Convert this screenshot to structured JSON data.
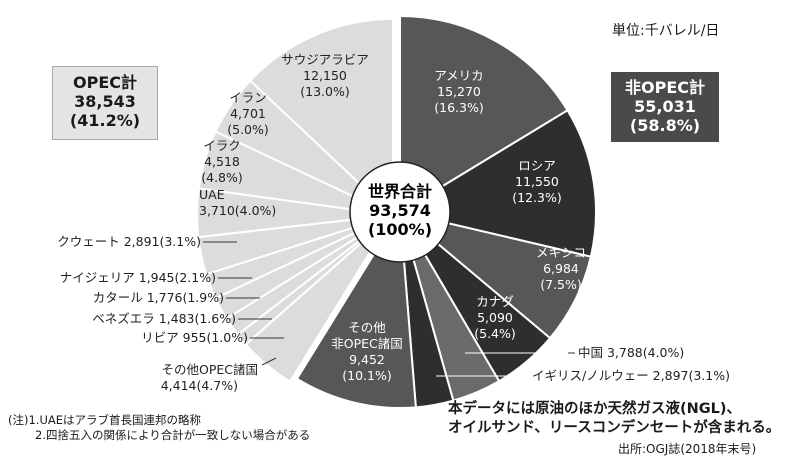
{
  "unit_label": "単位:千バレル/日",
  "opec_box": {
    "title": "OPEC計",
    "value": "38,543",
    "pct": "(41.2%)"
  },
  "nonopec_box": {
    "title": "非OPEC計",
    "value": "55,031",
    "pct": "(58.8%)"
  },
  "center": {
    "title": "世界合計",
    "value": "93,574",
    "pct": "(100%)"
  },
  "colors": {
    "opec": "#dcdcdc",
    "nonopec_dark": "#2e2e2e",
    "nonopec_mid": "#575757",
    "nonopec_light": "#6a6a6a",
    "separator": "#ffffff"
  },
  "chart_data": {
    "type": "pie",
    "total": 93574,
    "groups": [
      {
        "name": "非OPEC計",
        "value": 55031,
        "pct": 58.8
      },
      {
        "name": "OPEC計",
        "value": 38543,
        "pct": 41.2
      }
    ],
    "slices": [
      {
        "name": "アメリカ",
        "value": 15270,
        "value_label": "15,270",
        "pct_label": "(16.3%)",
        "group": "nonopec"
      },
      {
        "name": "ロシア",
        "value": 11550,
        "value_label": "11,550",
        "pct_label": "(12.3%)",
        "group": "nonopec"
      },
      {
        "name": "メキシコ",
        "value": 6984,
        "value_label": "6,984",
        "pct_label": "(7.5%)",
        "group": "nonopec"
      },
      {
        "name": "カナダ",
        "value": 5090,
        "value_label": "5,090",
        "pct_label": "(5.4%)",
        "group": "nonopec"
      },
      {
        "name": "中国",
        "value": 3788,
        "value_label": "3,788",
        "pct_label": "(4.0%)",
        "group": "nonopec"
      },
      {
        "name": "イギリス/ノルウェー",
        "value": 2897,
        "value_label": "2,897",
        "pct_label": "(3.1%)",
        "group": "nonopec"
      },
      {
        "name": "その他非OPEC諸国",
        "value": 9452,
        "value_label": "9,452",
        "pct_label": "(10.1%)",
        "group": "nonopec"
      },
      {
        "name": "その他OPEC諸国",
        "value": 4414,
        "value_label": "4,414",
        "pct_label": "(4.7%)",
        "group": "opec"
      },
      {
        "name": "リビア",
        "value": 955,
        "value_label": "955",
        "pct_label": "(1.0%)",
        "group": "opec"
      },
      {
        "name": "ベネズエラ",
        "value": 1483,
        "value_label": "1,483",
        "pct_label": "(1.6%)",
        "group": "opec"
      },
      {
        "name": "カタール",
        "value": 1776,
        "value_label": "1,776",
        "pct_label": "(1.9%)",
        "group": "opec"
      },
      {
        "name": "ナイジェリア",
        "value": 1945,
        "value_label": "1,945",
        "pct_label": "(2.1%)",
        "group": "opec"
      },
      {
        "name": "クウェート",
        "value": 2891,
        "value_label": "2,891",
        "pct_label": "(3.1%)",
        "group": "opec"
      },
      {
        "name": "UAE",
        "value": 3710,
        "value_label": "3,710",
        "pct_label": "(4.0%)",
        "group": "opec"
      },
      {
        "name": "イラク",
        "value": 4518,
        "value_label": "4,518",
        "pct_label": "(4.8%)",
        "group": "opec"
      },
      {
        "name": "イラン",
        "value": 4701,
        "value_label": "4,701",
        "pct_label": "(5.0%)",
        "group": "opec"
      },
      {
        "name": "サウジアラビア",
        "value": 12150,
        "value_label": "12,150",
        "pct_label": "(13.0%)",
        "group": "opec"
      }
    ]
  },
  "notes": [
    "(注)1.UAEはアラブ首長国連邦の略称",
    "2.四捨五入の関係により合計が一致しない場合がある"
  ],
  "bottom_note": [
    "本データには原油のほか天然ガス液(NGL)、",
    "オイルサンド、リースコンデンセートが含まれる。"
  ],
  "source": "出所:OGJ誌(2018年末号)"
}
